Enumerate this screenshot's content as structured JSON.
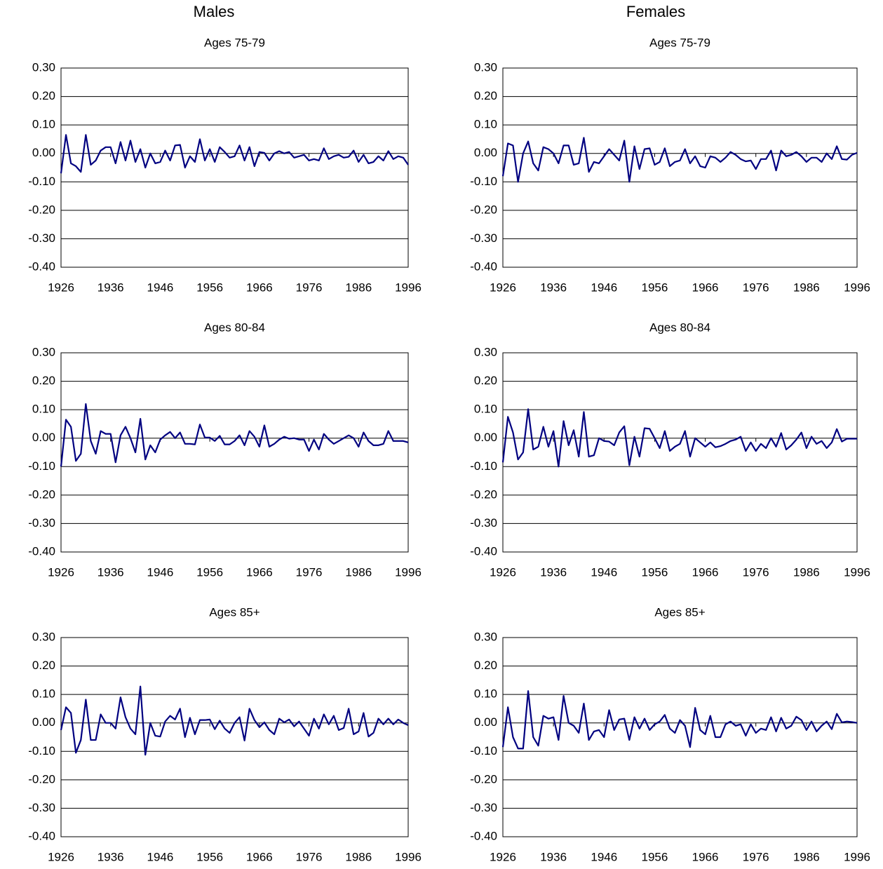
{
  "headers": [
    "Males",
    "Females"
  ],
  "chart_data": [
    {
      "type": "line",
      "title": "Ages 75-79",
      "x": [
        1926,
        1927,
        1928,
        1929,
        1930,
        1931,
        1932,
        1933,
        1934,
        1935,
        1936,
        1937,
        1938,
        1939,
        1940,
        1941,
        1942,
        1943,
        1944,
        1945,
        1946,
        1947,
        1948,
        1949,
        1950,
        1951,
        1952,
        1953,
        1954,
        1955,
        1956,
        1957,
        1958,
        1959,
        1960,
        1961,
        1962,
        1963,
        1964,
        1965,
        1966,
        1967,
        1968,
        1969,
        1970,
        1971,
        1972,
        1973,
        1974,
        1975,
        1976,
        1977,
        1978,
        1979,
        1980,
        1981,
        1982,
        1983,
        1984,
        1985,
        1986,
        1987,
        1988,
        1989,
        1990,
        1991,
        1992,
        1993,
        1994,
        1995,
        1996
      ],
      "values": [
        -0.07,
        0.065,
        -0.035,
        -0.045,
        -0.065,
        0.065,
        -0.04,
        -0.025,
        0.01,
        0.022,
        0.022,
        -0.035,
        0.04,
        -0.025,
        0.045,
        -0.03,
        0.015,
        -0.05,
        0.0,
        -0.035,
        -0.03,
        0.01,
        -0.025,
        0.028,
        0.03,
        -0.05,
        -0.01,
        -0.03,
        0.05,
        -0.025,
        0.015,
        -0.03,
        0.022,
        0.005,
        -0.015,
        -0.01,
        0.028,
        -0.025,
        0.022,
        -0.045,
        0.005,
        0.002,
        -0.025,
        0.0,
        0.008,
        0.0,
        0.005,
        -0.015,
        -0.01,
        -0.005,
        -0.025,
        -0.02,
        -0.025,
        0.018,
        -0.02,
        -0.01,
        -0.005,
        -0.015,
        -0.012,
        0.01,
        -0.03,
        -0.005,
        -0.035,
        -0.03,
        -0.01,
        -0.025,
        0.008,
        -0.02,
        -0.01,
        -0.015,
        -0.04
      ],
      "color": "#000080",
      "xlim": [
        1926,
        1996
      ],
      "xticks": [
        1926,
        1936,
        1946,
        1956,
        1966,
        1976,
        1986,
        1996
      ],
      "ylim": [
        -0.4,
        0.3
      ],
      "yticks": [
        {
          "value": -0.4,
          "label": "-0.40"
        },
        {
          "value": -0.3,
          "label": "-0.30"
        },
        {
          "value": -0.2,
          "label": "-0.20"
        },
        {
          "value": -0.1,
          "label": "-0.10"
        },
        {
          "value": 0,
          "label": "0.00"
        },
        {
          "value": 0.1,
          "label": "0.10"
        },
        {
          "value": 0.2,
          "label": "0.20"
        },
        {
          "value": 0.3,
          "label": "0.30"
        }
      ],
      "grid": true
    },
    {
      "type": "line",
      "title": "Ages 75-79",
      "x": [
        1926,
        1927,
        1928,
        1929,
        1930,
        1931,
        1932,
        1933,
        1934,
        1935,
        1936,
        1937,
        1938,
        1939,
        1940,
        1941,
        1942,
        1943,
        1944,
        1945,
        1946,
        1947,
        1948,
        1949,
        1950,
        1951,
        1952,
        1953,
        1954,
        1955,
        1956,
        1957,
        1958,
        1959,
        1960,
        1961,
        1962,
        1963,
        1964,
        1965,
        1966,
        1967,
        1968,
        1969,
        1970,
        1971,
        1972,
        1973,
        1974,
        1975,
        1976,
        1977,
        1978,
        1979,
        1980,
        1981,
        1982,
        1983,
        1984,
        1985,
        1986,
        1987,
        1988,
        1989,
        1990,
        1991,
        1992,
        1993,
        1994,
        1995,
        1996
      ],
      "values": [
        -0.08,
        0.035,
        0.028,
        -0.1,
        0.0,
        0.042,
        -0.035,
        -0.06,
        0.022,
        0.015,
        0.0,
        -0.035,
        0.028,
        0.028,
        -0.04,
        -0.035,
        0.055,
        -0.065,
        -0.03,
        -0.035,
        -0.01,
        0.015,
        -0.005,
        -0.025,
        0.045,
        -0.1,
        0.025,
        -0.055,
        0.015,
        0.018,
        -0.04,
        -0.03,
        0.018,
        -0.045,
        -0.03,
        -0.025,
        0.015,
        -0.035,
        -0.01,
        -0.045,
        -0.05,
        -0.01,
        -0.015,
        -0.03,
        -0.015,
        0.005,
        -0.005,
        -0.02,
        -0.028,
        -0.025,
        -0.055,
        -0.02,
        -0.02,
        0.01,
        -0.06,
        0.01,
        -0.01,
        -0.005,
        0.005,
        -0.01,
        -0.03,
        -0.015,
        -0.015,
        -0.03,
        0.0,
        -0.02,
        0.025,
        -0.02,
        -0.022,
        -0.005,
        0.002
      ],
      "color": "#000080",
      "xlim": [
        1926,
        1996
      ],
      "xticks": [
        1926,
        1936,
        1946,
        1956,
        1966,
        1976,
        1986,
        1996
      ],
      "ylim": [
        -0.4,
        0.3
      ],
      "yticks": [
        {
          "value": -0.4,
          "label": "-0.40"
        },
        {
          "value": -0.3,
          "label": "-0.30"
        },
        {
          "value": -0.2,
          "label": "-0.20"
        },
        {
          "value": -0.1,
          "label": "-0.10"
        },
        {
          "value": 0,
          "label": "0.00"
        },
        {
          "value": 0.1,
          "label": "0.10"
        },
        {
          "value": 0.2,
          "label": "0.20"
        },
        {
          "value": 0.3,
          "label": "0.30"
        }
      ],
      "grid": true
    },
    {
      "type": "line",
      "title": "Ages 80-84",
      "x": [
        1926,
        1927,
        1928,
        1929,
        1930,
        1931,
        1932,
        1933,
        1934,
        1935,
        1936,
        1937,
        1938,
        1939,
        1940,
        1941,
        1942,
        1943,
        1944,
        1945,
        1946,
        1947,
        1948,
        1949,
        1950,
        1951,
        1952,
        1953,
        1954,
        1955,
        1956,
        1957,
        1958,
        1959,
        1960,
        1961,
        1962,
        1963,
        1964,
        1965,
        1966,
        1967,
        1968,
        1969,
        1970,
        1971,
        1972,
        1973,
        1974,
        1975,
        1976,
        1977,
        1978,
        1979,
        1980,
        1981,
        1982,
        1983,
        1984,
        1985,
        1986,
        1987,
        1988,
        1989,
        1990,
        1991,
        1992,
        1993,
        1994,
        1995,
        1996
      ],
      "values": [
        -0.1,
        0.065,
        0.04,
        -0.08,
        -0.055,
        0.12,
        -0.01,
        -0.055,
        0.025,
        0.015,
        0.015,
        -0.085,
        0.01,
        0.04,
        0.0,
        -0.05,
        0.068,
        -0.075,
        -0.025,
        -0.05,
        -0.005,
        0.01,
        0.022,
        0.0,
        0.02,
        -0.02,
        -0.02,
        -0.022,
        0.048,
        0.002,
        0.002,
        -0.01,
        0.008,
        -0.022,
        -0.022,
        -0.01,
        0.01,
        -0.025,
        0.025,
        0.005,
        -0.03,
        0.045,
        -0.03,
        -0.02,
        -0.005,
        0.005,
        -0.002,
        0.0,
        -0.005,
        -0.005,
        -0.045,
        -0.005,
        -0.04,
        0.015,
        -0.005,
        -0.02,
        -0.01,
        0.0,
        0.01,
        0.0,
        -0.03,
        0.02,
        -0.01,
        -0.025,
        -0.025,
        -0.02,
        0.025,
        -0.01,
        -0.01,
        -0.01,
        -0.015
      ],
      "color": "#000080",
      "xlim": [
        1926,
        1996
      ],
      "xticks": [
        1926,
        1936,
        1946,
        1956,
        1966,
        1976,
        1986,
        1996
      ],
      "ylim": [
        -0.4,
        0.3
      ],
      "yticks": [
        {
          "value": -0.4,
          "label": "-0.40"
        },
        {
          "value": -0.3,
          "label": "-0.30"
        },
        {
          "value": -0.2,
          "label": "-0.20"
        },
        {
          "value": -0.1,
          "label": "-0.10"
        },
        {
          "value": 0,
          "label": "0.00"
        },
        {
          "value": 0.1,
          "label": "0.10"
        },
        {
          "value": 0.2,
          "label": "0.20"
        },
        {
          "value": 0.3,
          "label": "0.30"
        }
      ],
      "grid": true
    },
    {
      "type": "line",
      "title": "Ages 80-84",
      "x": [
        1926,
        1927,
        1928,
        1929,
        1930,
        1931,
        1932,
        1933,
        1934,
        1935,
        1936,
        1937,
        1938,
        1939,
        1940,
        1941,
        1942,
        1943,
        1944,
        1945,
        1946,
        1947,
        1948,
        1949,
        1950,
        1951,
        1952,
        1953,
        1954,
        1955,
        1956,
        1957,
        1958,
        1959,
        1960,
        1961,
        1962,
        1963,
        1964,
        1965,
        1966,
        1967,
        1968,
        1969,
        1970,
        1971,
        1972,
        1973,
        1974,
        1975,
        1976,
        1977,
        1978,
        1979,
        1980,
        1981,
        1982,
        1983,
        1984,
        1985,
        1986,
        1987,
        1988,
        1989,
        1990,
        1991,
        1992,
        1993,
        1994,
        1995,
        1996
      ],
      "values": [
        -0.085,
        0.075,
        0.02,
        -0.075,
        -0.05,
        0.102,
        -0.04,
        -0.03,
        0.04,
        -0.03,
        0.025,
        -0.1,
        0.06,
        -0.025,
        0.028,
        -0.065,
        0.092,
        -0.065,
        -0.06,
        0.0,
        -0.01,
        -0.012,
        -0.025,
        0.02,
        0.042,
        -0.095,
        0.005,
        -0.065,
        0.035,
        0.033,
        0.0,
        -0.035,
        0.025,
        -0.045,
        -0.03,
        -0.02,
        0.025,
        -0.065,
        0.0,
        -0.015,
        -0.03,
        -0.015,
        -0.032,
        -0.028,
        -0.02,
        -0.01,
        -0.005,
        0.005,
        -0.045,
        -0.015,
        -0.045,
        -0.02,
        -0.035,
        0.0,
        -0.03,
        0.018,
        -0.04,
        -0.025,
        -0.005,
        0.02,
        -0.035,
        0.005,
        -0.02,
        -0.01,
        -0.035,
        -0.015,
        0.032,
        -0.012,
        -0.002,
        -0.002,
        -0.002
      ],
      "color": "#000080",
      "xlim": [
        1926,
        1996
      ],
      "xticks": [
        1926,
        1936,
        1946,
        1956,
        1966,
        1976,
        1986,
        1996
      ],
      "ylim": [
        -0.4,
        0.3
      ],
      "yticks": [
        {
          "value": -0.4,
          "label": "-0.40"
        },
        {
          "value": -0.3,
          "label": "-0.30"
        },
        {
          "value": -0.2,
          "label": "-0.20"
        },
        {
          "value": -0.1,
          "label": "-0.10"
        },
        {
          "value": 0,
          "label": "0.00"
        },
        {
          "value": 0.1,
          "label": "0.10"
        },
        {
          "value": 0.2,
          "label": "0.20"
        },
        {
          "value": 0.3,
          "label": "0.30"
        }
      ],
      "grid": true
    },
    {
      "type": "line",
      "title": "Ages 85+",
      "x": [
        1926,
        1927,
        1928,
        1929,
        1930,
        1931,
        1932,
        1933,
        1934,
        1935,
        1936,
        1937,
        1938,
        1939,
        1940,
        1941,
        1942,
        1943,
        1944,
        1945,
        1946,
        1947,
        1948,
        1949,
        1950,
        1951,
        1952,
        1953,
        1954,
        1955,
        1956,
        1957,
        1958,
        1959,
        1960,
        1961,
        1962,
        1963,
        1964,
        1965,
        1966,
        1967,
        1968,
        1969,
        1970,
        1971,
        1972,
        1973,
        1974,
        1975,
        1976,
        1977,
        1978,
        1979,
        1980,
        1981,
        1982,
        1983,
        1984,
        1985,
        1986,
        1987,
        1988,
        1989,
        1990,
        1991,
        1992,
        1993,
        1994,
        1995,
        1996
      ],
      "values": [
        -0.025,
        0.055,
        0.035,
        -0.105,
        -0.06,
        0.082,
        -0.06,
        -0.06,
        0.03,
        0.0,
        0.0,
        -0.02,
        0.09,
        0.02,
        -0.02,
        -0.04,
        0.128,
        -0.112,
        0.0,
        -0.045,
        -0.048,
        0.005,
        0.025,
        0.012,
        0.05,
        -0.05,
        0.018,
        -0.04,
        0.01,
        0.01,
        0.012,
        -0.022,
        0.008,
        -0.02,
        -0.035,
        0.0,
        0.02,
        -0.062,
        0.05,
        0.01,
        -0.015,
        0.002,
        -0.025,
        -0.04,
        0.015,
        0.002,
        0.012,
        -0.012,
        0.005,
        -0.02,
        -0.045,
        0.015,
        -0.02,
        0.03,
        -0.005,
        0.025,
        -0.025,
        -0.018,
        0.05,
        -0.04,
        -0.03,
        0.035,
        -0.048,
        -0.035,
        0.015,
        -0.005,
        0.015,
        -0.005,
        0.012,
        0.0,
        -0.008
      ],
      "color": "#000080",
      "xlim": [
        1926,
        1996
      ],
      "xticks": [
        1926,
        1936,
        1946,
        1956,
        1966,
        1976,
        1986,
        1996
      ],
      "ylim": [
        -0.4,
        0.3
      ],
      "yticks": [
        {
          "value": -0.4,
          "label": "-0.40"
        },
        {
          "value": -0.3,
          "label": "-0.30"
        },
        {
          "value": -0.2,
          "label": "-0.20"
        },
        {
          "value": -0.1,
          "label": "-0.10"
        },
        {
          "value": 0,
          "label": "0.00"
        },
        {
          "value": 0.1,
          "label": "0.10"
        },
        {
          "value": 0.2,
          "label": "0.20"
        },
        {
          "value": 0.3,
          "label": "0.30"
        }
      ],
      "grid": true
    },
    {
      "type": "line",
      "title": "Ages 85+",
      "x": [
        1926,
        1927,
        1928,
        1929,
        1930,
        1931,
        1932,
        1933,
        1934,
        1935,
        1936,
        1937,
        1938,
        1939,
        1940,
        1941,
        1942,
        1943,
        1944,
        1945,
        1946,
        1947,
        1948,
        1949,
        1950,
        1951,
        1952,
        1953,
        1954,
        1955,
        1956,
        1957,
        1958,
        1959,
        1960,
        1961,
        1962,
        1963,
        1964,
        1965,
        1966,
        1967,
        1968,
        1969,
        1970,
        1971,
        1972,
        1973,
        1974,
        1975,
        1976,
        1977,
        1978,
        1979,
        1980,
        1981,
        1982,
        1983,
        1984,
        1985,
        1986,
        1987,
        1988,
        1989,
        1990,
        1991,
        1992,
        1993,
        1994,
        1995,
        1996
      ],
      "values": [
        -0.085,
        0.055,
        -0.05,
        -0.09,
        -0.09,
        0.112,
        -0.05,
        -0.08,
        0.025,
        0.015,
        0.02,
        -0.06,
        0.095,
        0.0,
        -0.01,
        -0.035,
        0.068,
        -0.06,
        -0.03,
        -0.025,
        -0.05,
        0.045,
        -0.025,
        0.012,
        0.015,
        -0.06,
        0.02,
        -0.02,
        0.015,
        -0.025,
        -0.005,
        0.005,
        0.028,
        -0.02,
        -0.035,
        0.01,
        -0.01,
        -0.085,
        0.053,
        -0.025,
        -0.04,
        0.025,
        -0.05,
        -0.05,
        -0.005,
        0.005,
        -0.01,
        -0.005,
        -0.045,
        -0.005,
        -0.035,
        -0.02,
        -0.025,
        0.02,
        -0.03,
        0.018,
        -0.02,
        -0.01,
        0.022,
        0.01,
        -0.025,
        0.005,
        -0.03,
        -0.01,
        0.005,
        -0.022,
        0.032,
        0.002,
        0.005,
        0.003,
        0.0
      ],
      "color": "#000080",
      "xlim": [
        1926,
        1996
      ],
      "xticks": [
        1926,
        1936,
        1946,
        1956,
        1966,
        1976,
        1986,
        1996
      ],
      "ylim": [
        -0.4,
        0.3
      ],
      "yticks": [
        {
          "value": -0.4,
          "label": "-0.40"
        },
        {
          "value": -0.3,
          "label": "-0.30"
        },
        {
          "value": -0.2,
          "label": "-0.20"
        },
        {
          "value": -0.1,
          "label": "-0.10"
        },
        {
          "value": 0,
          "label": "0.00"
        },
        {
          "value": 0.1,
          "label": "0.10"
        },
        {
          "value": 0.2,
          "label": "0.20"
        },
        {
          "value": 0.3,
          "label": "0.30"
        }
      ],
      "grid": true
    }
  ]
}
